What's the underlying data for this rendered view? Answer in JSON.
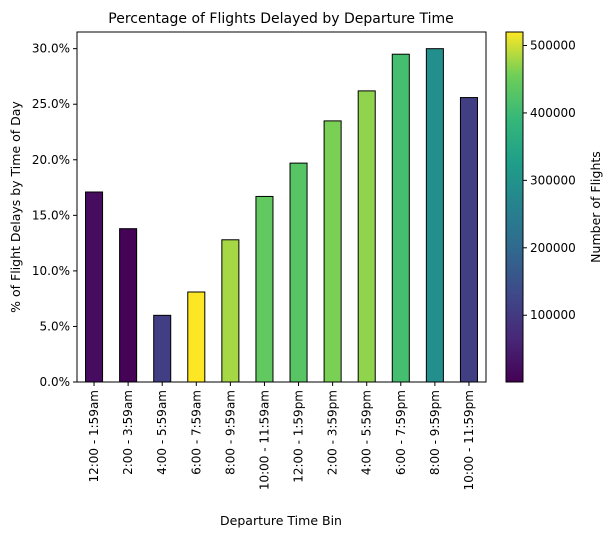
{
  "chart_data": {
    "type": "bar",
    "title": "Percentage of Flights Delayed by Departure Time",
    "xlabel": "Departure Time Bin",
    "ylabel": "% of Flight Delays by Time of Day",
    "categories": [
      "12:00 - 1:59am",
      "2:00 - 3:59am",
      "4:00 - 5:59am",
      "6:00 - 7:59am",
      "8:00 - 9:59am",
      "10:00 - 11:59am",
      "12:00 - 1:59pm",
      "2:00 - 3:59pm",
      "4:00 - 5:59pm",
      "6:00 - 7:59pm",
      "8:00 - 9:59pm",
      "10:00 - 11:59pm"
    ],
    "values": [
      17.1,
      13.8,
      6.0,
      8.1,
      12.8,
      16.7,
      19.7,
      23.5,
      26.2,
      29.5,
      30.0,
      25.6
    ],
    "flight_counts": [
      20000,
      5000,
      110000,
      520000,
      480000,
      440000,
      430000,
      460000,
      470000,
      410000,
      290000,
      110000
    ],
    "ylim": [
      0,
      31.5
    ],
    "yticks": [
      0,
      5,
      10,
      15,
      20,
      25,
      30
    ],
    "ytick_labels": [
      "0.0%",
      "5.0%",
      "10.0%",
      "15.0%",
      "20.0%",
      "25.0%",
      "30.0%"
    ],
    "colorbar": {
      "label": "Number of Flights",
      "colormap": "viridis",
      "range": [
        1000,
        520000
      ],
      "ticks": [
        100000,
        200000,
        300000,
        400000,
        500000
      ],
      "tick_labels": [
        "100000",
        "200000",
        "300000",
        "400000",
        "500000"
      ]
    },
    "grid": false,
    "legend": "none"
  }
}
